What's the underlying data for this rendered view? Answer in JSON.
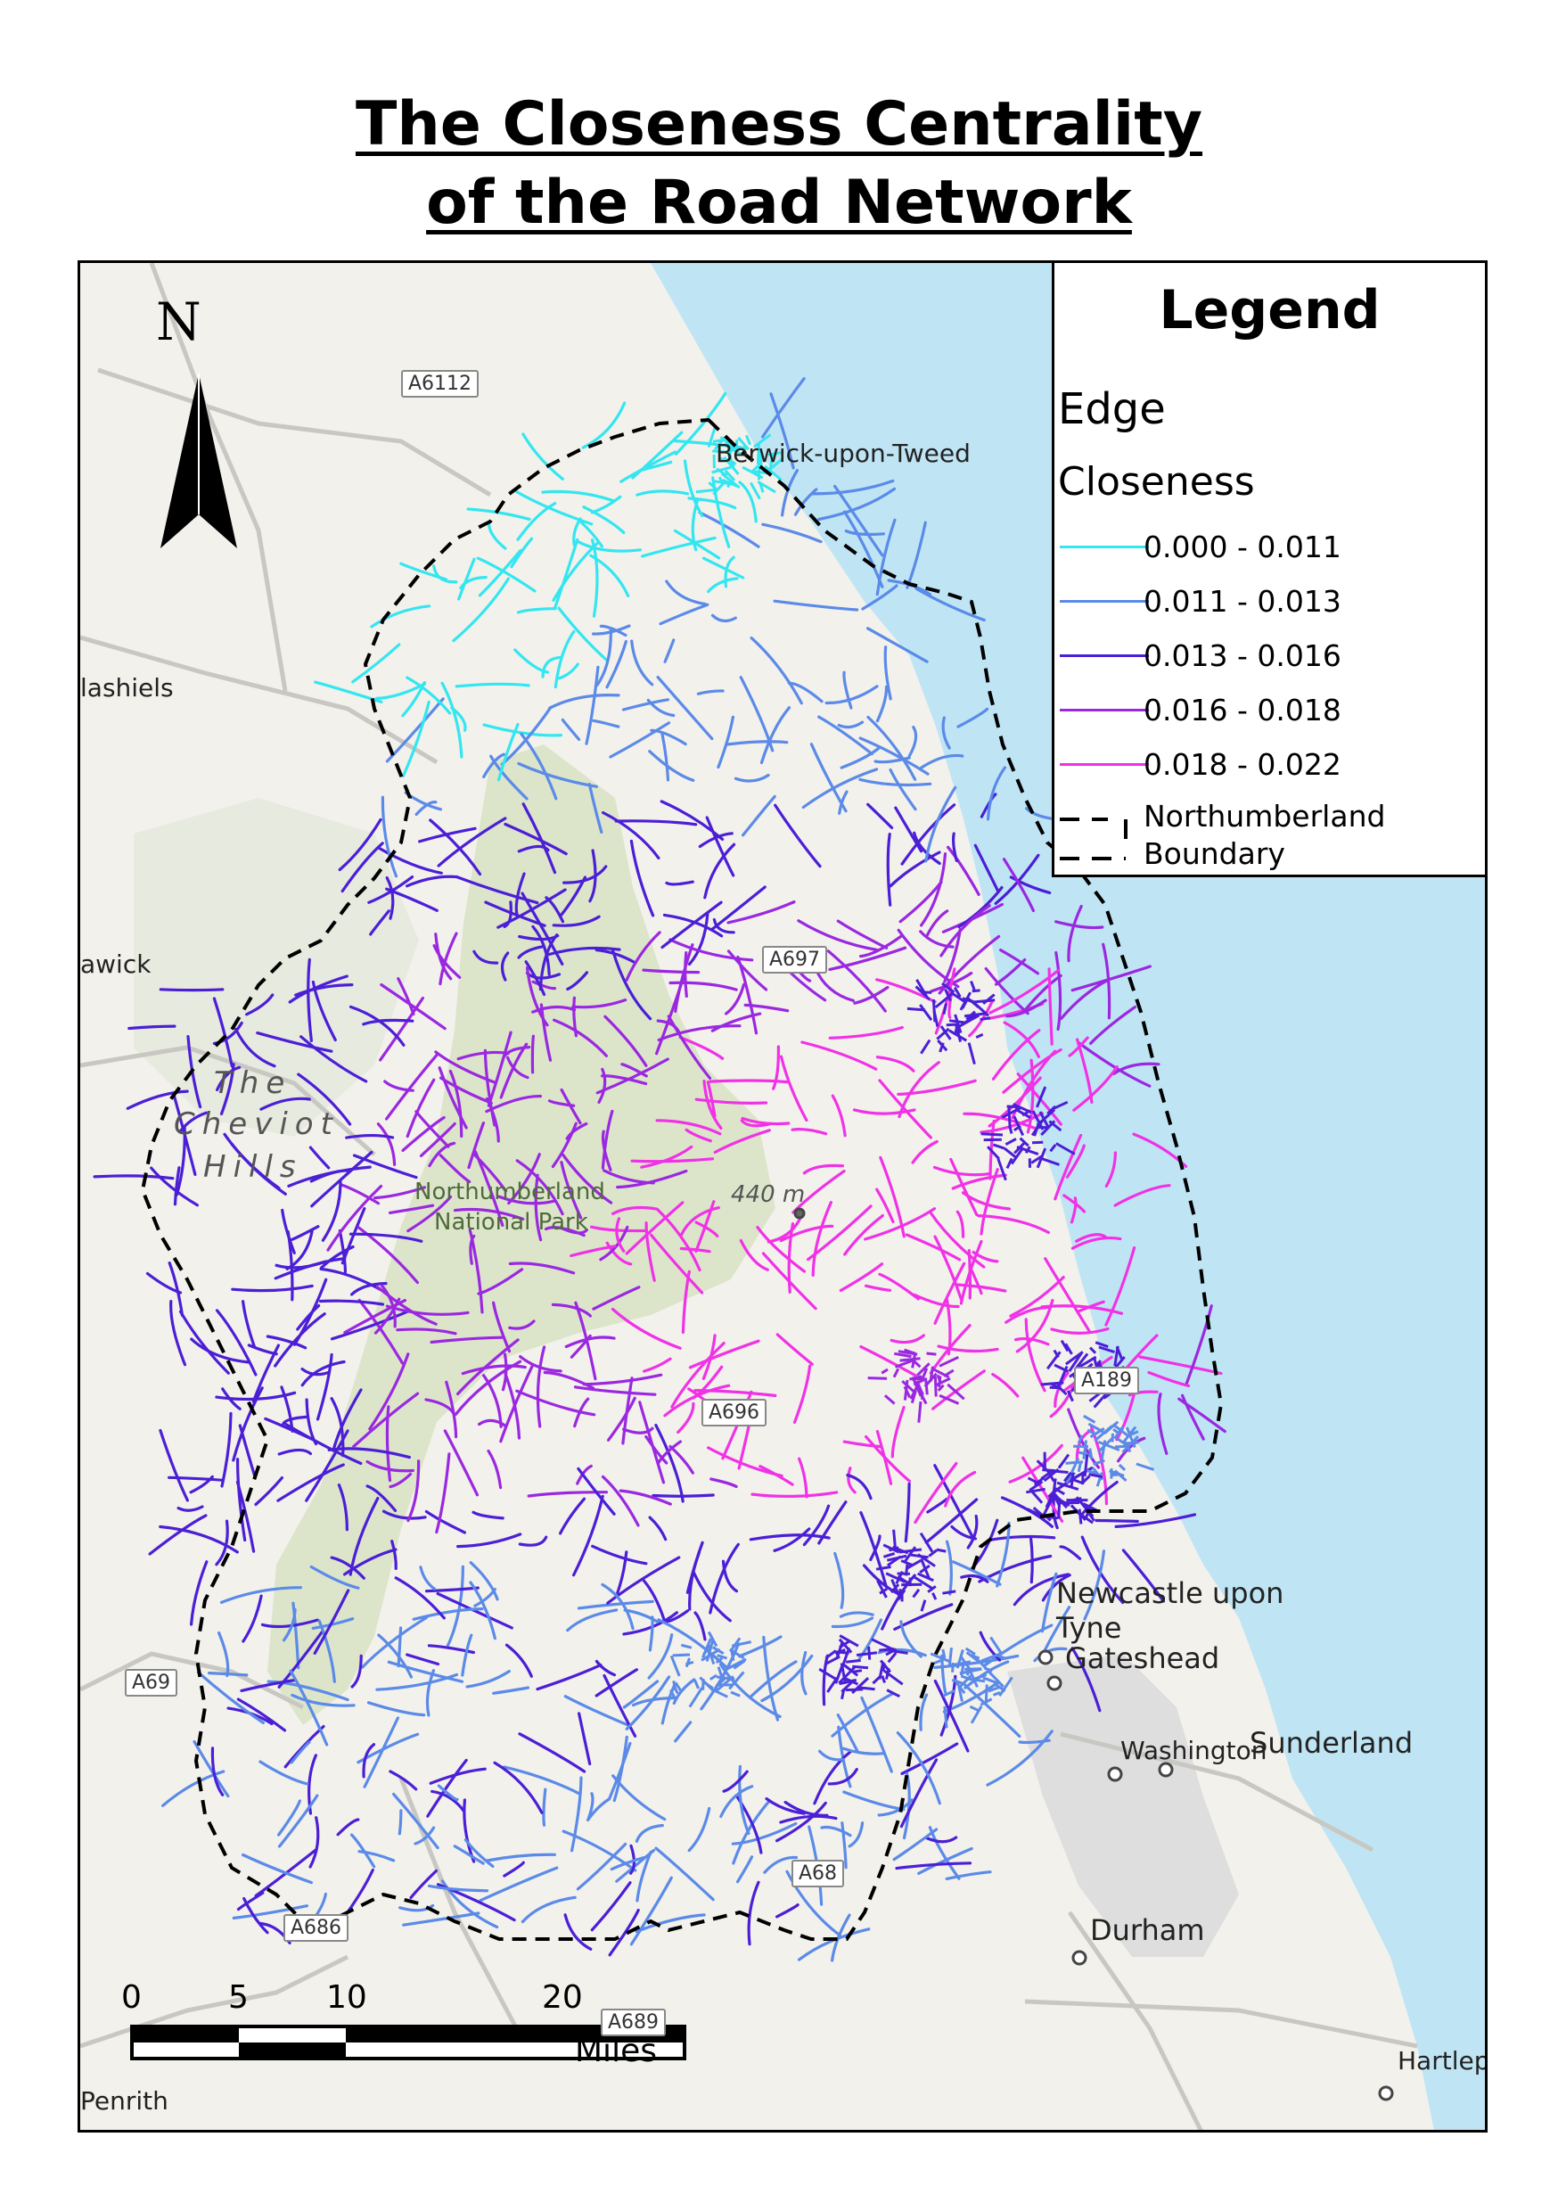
{
  "title": {
    "line1": "The Closeness Centrality",
    "line2": "of the Road Network"
  },
  "north_arrow": {
    "label": "N"
  },
  "legend": {
    "title": "Legend",
    "layer_name": "Edge",
    "field_name": "Closeness",
    "classes": [
      {
        "label": "0.000 - 0.011",
        "color": "#33e6f0"
      },
      {
        "label": "0.011 - 0.013",
        "color": "#5b8ae8"
      },
      {
        "label": "0.013 - 0.016",
        "color": "#4b1fd6"
      },
      {
        "label": "0.016 - 0.018",
        "color": "#9a28e0"
      },
      {
        "label": "0.018 - 0.022",
        "color": "#f032e6"
      }
    ],
    "boundary": {
      "line1": "Northumberland",
      "line2": "Boundary"
    }
  },
  "scale_bar": {
    "ticks": [
      "0",
      "5",
      "10",
      "20"
    ],
    "unit": "Miles"
  },
  "places": {
    "berwick": "Berwick-upon-Tweed",
    "galashiels": "lashiels",
    "hawick": "awick",
    "cheviot_1": "The",
    "cheviot_2": "Cheviot",
    "cheviot_3": "Hills",
    "park_1": "Northumberland",
    "park_2": "National Park",
    "peak": "440 m",
    "newcastle_1": "Newcastle upon",
    "newcastle_2": "Tyne",
    "gateshead": "Gateshead",
    "sunderland": "Sunderland",
    "washington": "Washington",
    "durham": "Durham",
    "hartlepool": "Hartlep",
    "penrith": "Penrith"
  },
  "roads": {
    "a6112": "A6112",
    "a697": "A697",
    "a696": "A696",
    "a189": "A189",
    "a69": "A69",
    "a68": "A68",
    "a686": "A686",
    "a689": "A689"
  },
  "colors": {
    "sea": "#bfe5f5",
    "land": "#f3f1ec",
    "park": "#d7e3c4",
    "urban": "#dcdcdc",
    "boundary": "#000000"
  }
}
